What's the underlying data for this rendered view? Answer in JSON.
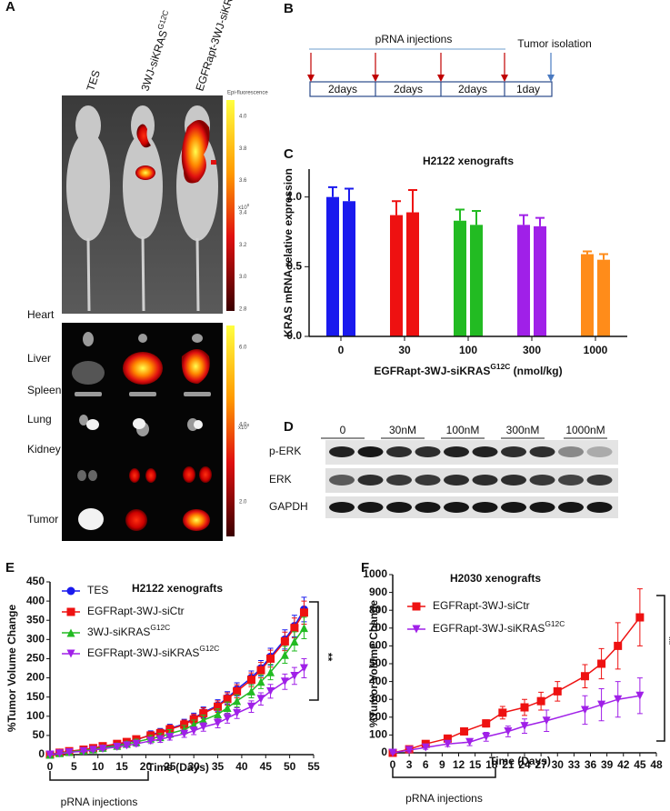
{
  "panel_labels": [
    "A",
    "B",
    "C",
    "D",
    "E",
    "F"
  ],
  "panel_a": {
    "columns": [
      {
        "text": "TES"
      },
      {
        "text": "3WJ-siKRAS",
        "sup": "G12C"
      },
      {
        "text": "EGFRapt-3WJ-siKRAS",
        "sup": "G12C"
      }
    ],
    "colorbar_title": "Epi-fluorescence",
    "colorbar_top": {
      "ticks": [
        "4.0",
        "3.8",
        "3.6",
        "3.4",
        "3.2",
        "3.0",
        "2.8"
      ],
      "unit": {
        "text": "x10",
        "sup": "8"
      }
    },
    "colorbar_bottom": {
      "ticks": [
        "6.0",
        "4.0",
        "2.0"
      ],
      "unit": {
        "text": "x10",
        "sup": "8"
      }
    },
    "organs": [
      "Heart",
      "Liver",
      "Spleen",
      "Lung",
      "Kidney",
      "Tumor"
    ]
  },
  "panel_b": {
    "injections": "pRNA injections",
    "isolation": "Tumor isolation",
    "intervals": [
      "2days",
      "2days",
      "2days",
      "1day"
    ]
  },
  "panel_d": {
    "lanes": [
      "0",
      "30nM",
      "100nM",
      "300nM",
      "1000nM"
    ],
    "rows": [
      "p-ERK",
      "ERK",
      "GAPDH"
    ]
  },
  "chart_data": [
    {
      "type": "bar",
      "title": "H2122 xenografts",
      "ylabel": "KRAS mRNA relative expression",
      "xlabel": {
        "text": "EGFRapt-3WJ-siKRAS",
        "sup": "G12C",
        "suffix": " (nmol/kg)"
      },
      "categories": [
        "0",
        "30",
        "100",
        "300",
        "1000"
      ],
      "colors": [
        "#1a1aee",
        "#ee1111",
        "#22bb22",
        "#a020e8",
        "#ff8c1a"
      ],
      "values": [
        [
          1.0,
          0.97
        ],
        [
          0.87,
          0.89
        ],
        [
          0.83,
          0.8
        ],
        [
          0.8,
          0.79
        ],
        [
          0.59,
          0.55
        ]
      ],
      "errors": [
        [
          0.07,
          0.09
        ],
        [
          0.1,
          0.16
        ],
        [
          0.08,
          0.1
        ],
        [
          0.07,
          0.06
        ],
        [
          0.02,
          0.04
        ]
      ],
      "ylim": [
        0,
        1.2
      ],
      "yticks": [
        {
          "value": 0,
          "label": "0.0"
        },
        {
          "value": 0.5,
          "label": "0.5"
        },
        {
          "value": 1,
          "label": "1.0"
        }
      ]
    },
    {
      "type": "line",
      "title": "H2122 xenografts",
      "ylabel": "%Tumor Volume Change",
      "xlabel": "Time (Days)",
      "significance": "**",
      "injection_label": "pRNA injections",
      "legend": "upper left",
      "x": [
        0,
        2,
        4,
        7,
        9,
        11,
        14,
        16,
        18,
        21,
        23,
        25,
        28,
        30,
        32,
        35,
        37,
        39,
        42,
        44,
        46,
        49,
        51,
        53
      ],
      "series": [
        {
          "name": {
            "text": "TES"
          },
          "color": "#1a1aee",
          "marker": "circle",
          "values": [
            0,
            5,
            8,
            12,
            16,
            20,
            26,
            32,
            38,
            52,
            58,
            68,
            80,
            95,
            110,
            128,
            148,
            170,
            200,
            225,
            255,
            300,
            335,
            378
          ],
          "errors": [
            2,
            2,
            3,
            3,
            4,
            5,
            6,
            7,
            8,
            10,
            10,
            11,
            12,
            13,
            14,
            15,
            16,
            17,
            18,
            20,
            22,
            25,
            28,
            32
          ]
        },
        {
          "name": {
            "text": "EGFRapt-3WJ-siCtr"
          },
          "color": "#ee1111",
          "marker": "square",
          "values": [
            0,
            5,
            9,
            13,
            17,
            22,
            28,
            33,
            40,
            50,
            56,
            66,
            78,
            92,
            108,
            125,
            145,
            165,
            195,
            220,
            250,
            295,
            330,
            370
          ],
          "errors": [
            2,
            2,
            3,
            3,
            4,
            5,
            6,
            7,
            8,
            9,
            10,
            11,
            12,
            13,
            14,
            15,
            16,
            17,
            18,
            20,
            22,
            24,
            26,
            30
          ]
        },
        {
          "name": {
            "text": "3WJ-siKRAS",
            "sup": "G12C"
          },
          "color": "#22bb22",
          "marker": "triangle-up",
          "values": [
            0,
            4,
            7,
            11,
            14,
            18,
            23,
            28,
            33,
            42,
            46,
            55,
            65,
            78,
            90,
            105,
            122,
            140,
            165,
            190,
            215,
            260,
            295,
            330
          ],
          "errors": [
            2,
            2,
            2,
            3,
            3,
            4,
            5,
            6,
            7,
            8,
            9,
            10,
            11,
            12,
            13,
            14,
            15,
            16,
            17,
            18,
            20,
            22,
            25,
            28
          ]
        },
        {
          "name": {
            "text": "EGFRapt-3WJ-siKRAS",
            "sup": "G12C"
          },
          "color": "#a020e8",
          "marker": "triangle-down",
          "values": [
            0,
            3,
            6,
            9,
            12,
            15,
            20,
            24,
            28,
            36,
            40,
            46,
            54,
            62,
            72,
            82,
            95,
            108,
            125,
            145,
            165,
            190,
            205,
            225
          ],
          "errors": [
            1,
            2,
            2,
            2,
            3,
            3,
            4,
            5,
            6,
            7,
            8,
            8,
            9,
            10,
            11,
            12,
            13,
            14,
            15,
            16,
            18,
            20,
            22,
            25
          ]
        }
      ],
      "xlim": [
        0,
        55
      ],
      "xticks": [
        0,
        5,
        10,
        15,
        20,
        25,
        30,
        35,
        40,
        45,
        50,
        55
      ],
      "ylim": [
        0,
        450
      ],
      "yticks": [
        0,
        50,
        100,
        150,
        200,
        250,
        300,
        350,
        400,
        450
      ]
    },
    {
      "type": "line",
      "title": "H2030 xenografts",
      "ylabel": "%Tumor Volume Change",
      "xlabel": "Time (Days)",
      "significance": "**",
      "injection_label": "pRNA injections",
      "legend": "upper left",
      "series": [
        {
          "name": {
            "text": "EGFRapt-3WJ-siCtr"
          },
          "color": "#ee1111",
          "marker": "square",
          "x": [
            0,
            3,
            6,
            10,
            13,
            17,
            20,
            24,
            27,
            30,
            35,
            38,
            41,
            45
          ],
          "values": [
            0,
            20,
            50,
            80,
            120,
            165,
            225,
            255,
            290,
            345,
            430,
            500,
            600,
            760
          ],
          "errors": [
            5,
            10,
            12,
            15,
            15,
            20,
            35,
            45,
            50,
            55,
            65,
            85,
            130,
            160
          ]
        },
        {
          "name": {
            "text": "EGFRapt-3WJ-siKRAS",
            "sup": "G12C"
          },
          "color": "#a020e8",
          "marker": "triangle-down",
          "x": [
            0,
            3,
            6,
            10,
            14,
            17,
            21,
            24,
            28,
            35,
            38,
            41,
            45
          ],
          "values": [
            0,
            15,
            30,
            50,
            60,
            90,
            120,
            150,
            180,
            240,
            270,
            300,
            320
          ],
          "errors": [
            5,
            10,
            10,
            15,
            20,
            25,
            30,
            40,
            60,
            80,
            90,
            100,
            100
          ]
        }
      ],
      "xlim": [
        0,
        48
      ],
      "xticks": [
        0,
        3,
        6,
        9,
        12,
        15,
        18,
        21,
        24,
        27,
        30,
        33,
        36,
        39,
        42,
        45,
        48
      ],
      "ylim": [
        0,
        1000
      ],
      "yticks": [
        0,
        100,
        200,
        300,
        400,
        500,
        600,
        700,
        800,
        900,
        1000
      ]
    }
  ]
}
